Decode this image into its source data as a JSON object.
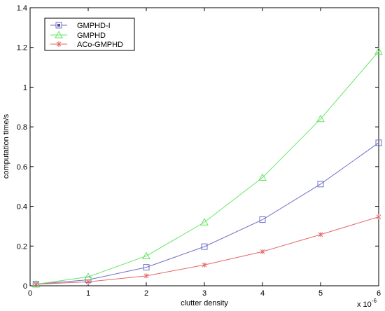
{
  "chart_data": {
    "type": "line",
    "xlabel": "clutter density",
    "ylabel": "computation time/s",
    "x_multiplier": {
      "base": "x 10",
      "exponent": "-6"
    },
    "xlim": [
      0,
      6
    ],
    "ylim": [
      0,
      1.4
    ],
    "x_ticks": [
      0,
      1,
      2,
      3,
      4,
      5,
      6
    ],
    "x_tick_labels": [
      "0",
      "1",
      "2",
      "3",
      "4",
      "5",
      "6"
    ],
    "y_ticks": [
      0,
      0.2,
      0.4,
      0.6,
      0.8,
      1.0,
      1.2,
      1.4
    ],
    "y_tick_labels": [
      "0",
      "0.2",
      "0.4",
      "0.6",
      "0.8",
      "1",
      "1.2",
      "1.4"
    ],
    "grid": false,
    "legend_position": "top-left",
    "x": [
      0.1,
      1,
      2,
      3,
      4,
      5,
      6
    ],
    "series": [
      {
        "name": "GMPHD-I",
        "values": [
          0.008,
          0.03,
          0.093,
          0.197,
          0.333,
          0.512,
          0.72
        ],
        "color": "#6f6fc4",
        "marker": "square"
      },
      {
        "name": "GMPHD",
        "values": [
          0.008,
          0.045,
          0.15,
          0.32,
          0.545,
          0.84,
          1.18
        ],
        "color": "#66e566",
        "marker": "triangle"
      },
      {
        "name": "ACo-GMPHD",
        "values": [
          0.008,
          0.02,
          0.05,
          0.105,
          0.172,
          0.258,
          0.347
        ],
        "color": "#e56666",
        "marker": "star"
      }
    ]
  }
}
